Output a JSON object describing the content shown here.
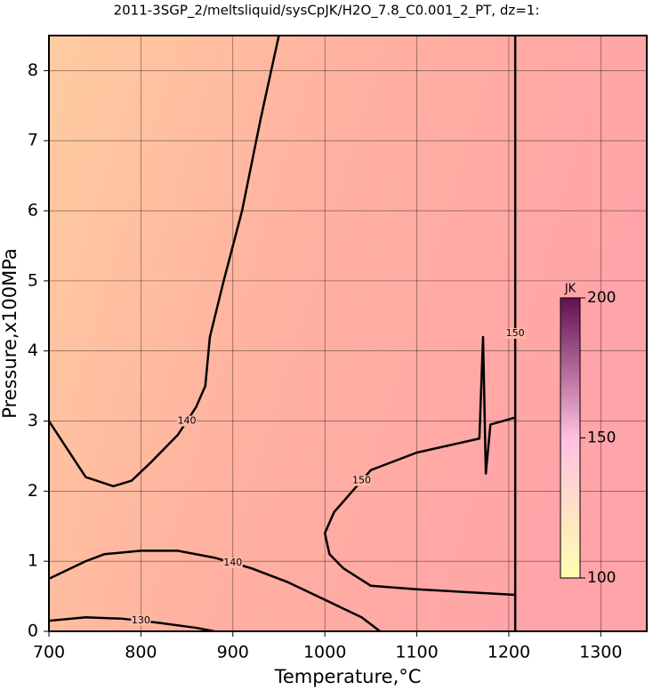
{
  "chart_data": {
    "type": "contour",
    "title": "2011-3SGP_2/meltsliquid/sysCpJK/H2O_7.8_C0.001_2_PT, dz=1:",
    "x_label": "Temperature,°C",
    "y_label": "Pressure,x100MPa",
    "xlim": [
      700,
      1350
    ],
    "ylim": [
      0,
      8.5
    ],
    "xticks": [
      700,
      800,
      900,
      1000,
      1100,
      1200,
      1300
    ],
    "yticks": [
      0,
      1,
      2,
      3,
      4,
      5,
      6,
      7,
      8
    ],
    "grid": true,
    "colorbar": {
      "label": "JK",
      "lim": [
        100,
        200
      ],
      "ticks": [
        100,
        150,
        200
      ],
      "colors": [
        "#ffffb0",
        "#ffc0e0",
        "#601050"
      ]
    },
    "contours": [
      {
        "level": 140,
        "x": [
          700,
          720,
          740,
          770,
          790,
          810,
          840,
          860,
          870,
          875,
          890,
          910,
          930,
          950
        ],
        "y": [
          3.0,
          2.6,
          2.2,
          2.07,
          2.15,
          2.4,
          2.8,
          3.2,
          3.5,
          4.2,
          5.0,
          6.0,
          7.3,
          8.5
        ]
      },
      {
        "level": 140,
        "x": [
          700,
          740,
          760,
          800,
          840,
          880,
          920,
          960,
          1000,
          1040,
          1060
        ],
        "y": [
          0.75,
          1.0,
          1.1,
          1.15,
          1.15,
          1.05,
          0.9,
          0.7,
          0.45,
          0.2,
          0.0
        ]
      },
      {
        "level": 150,
        "x": [
          1207,
          1180,
          1175,
          1172,
          1168,
          1100,
          1060,
          1050,
          1030,
          1010,
          1000,
          1005,
          1020,
          1050,
          1100,
          1207
        ],
        "y": [
          3.05,
          2.95,
          2.25,
          4.2,
          2.75,
          2.55,
          2.35,
          2.3,
          2.0,
          1.7,
          1.4,
          1.1,
          0.9,
          0.65,
          0.6,
          0.52
        ]
      },
      {
        "level": 150,
        "x": [
          1207,
          1207
        ],
        "y": [
          0,
          8.5
        ]
      },
      {
        "level": 130,
        "x": [
          700,
          740,
          780,
          820,
          860,
          880
        ],
        "y": [
          0.15,
          0.2,
          0.18,
          0.12,
          0.05,
          0.0
        ]
      }
    ]
  }
}
